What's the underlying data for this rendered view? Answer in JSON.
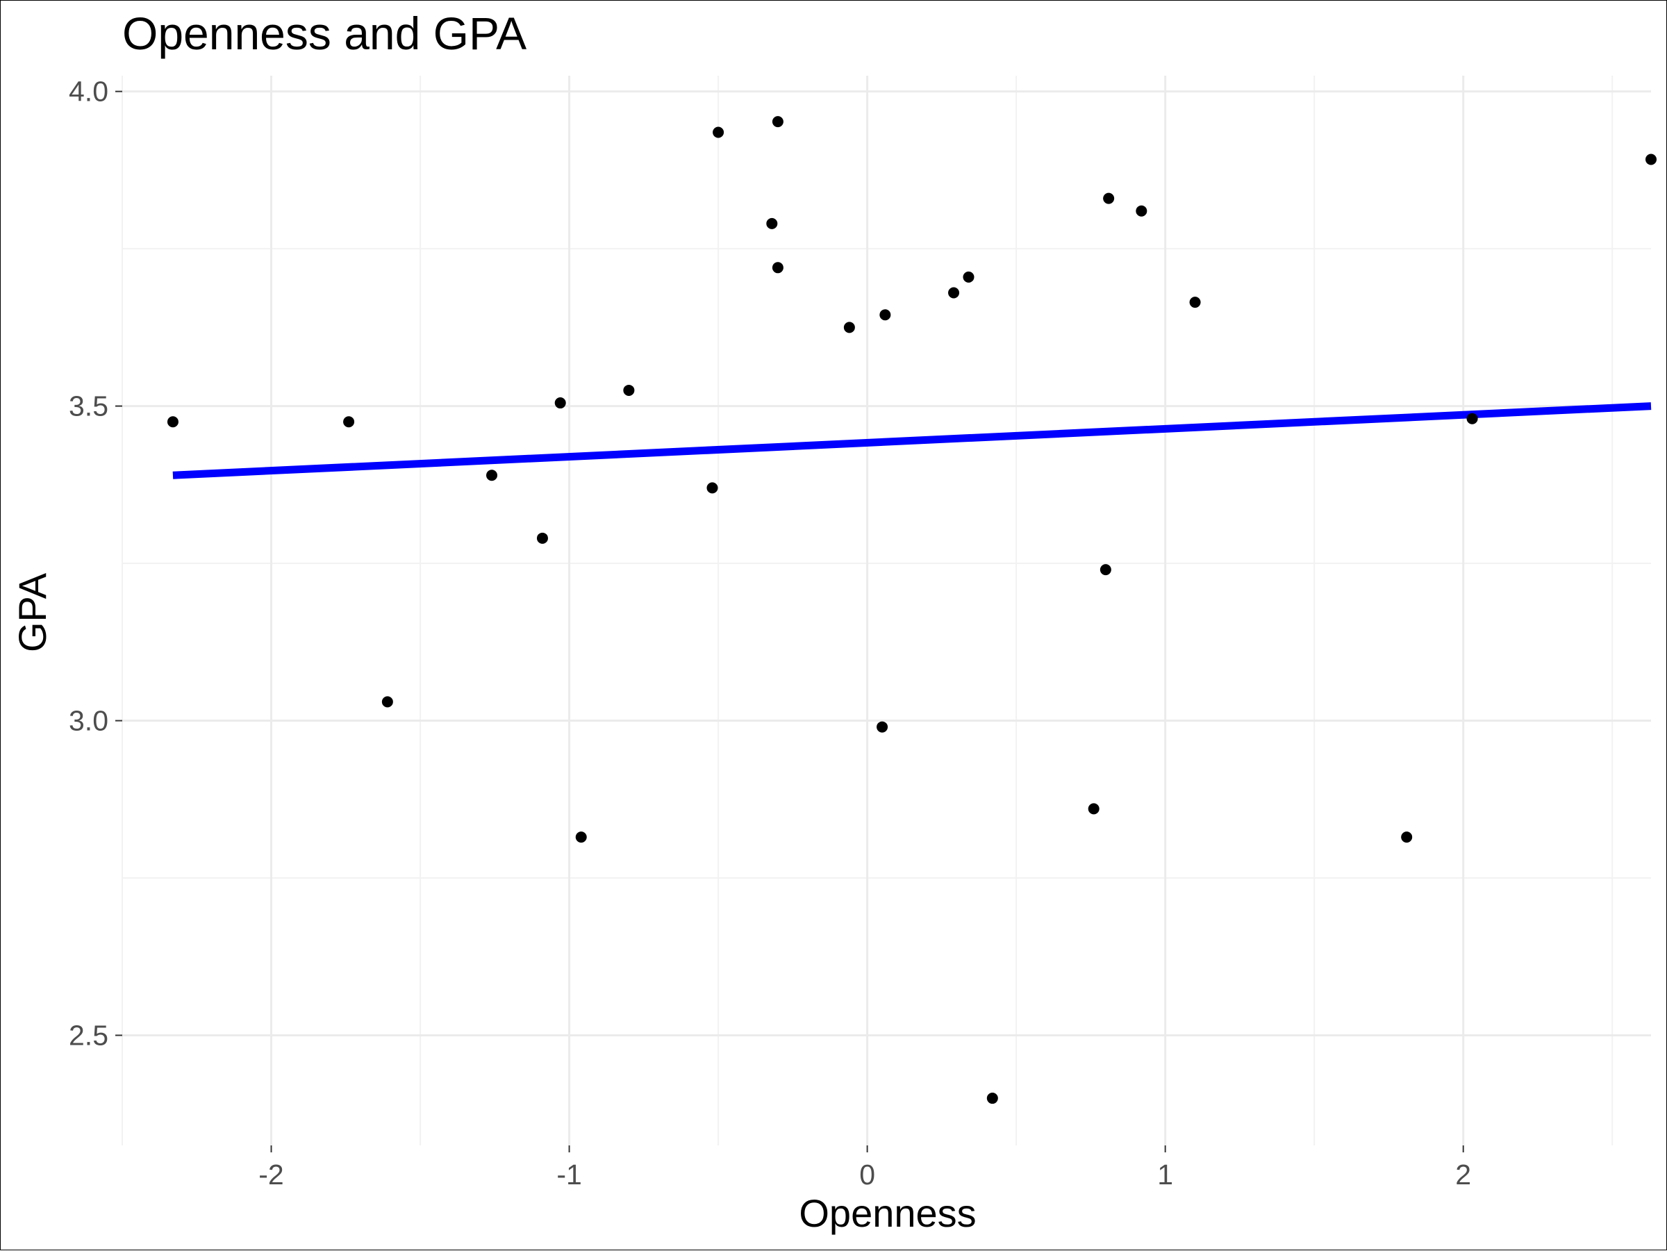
{
  "chart_data": {
    "type": "scatter",
    "title": "Openness and GPA",
    "xlabel": "Openness",
    "ylabel": "GPA",
    "xlim": [
      -2.5,
      2.63
    ],
    "ylim": [
      2.325,
      4.025
    ],
    "x_ticks": [
      -2,
      -1,
      0,
      1,
      2
    ],
    "x_tick_labels": [
      "-2",
      "-1",
      "0",
      "1",
      "2"
    ],
    "x_minor_ticks": [
      -2.5,
      -1.5,
      -0.5,
      0.5,
      1.5,
      2.5
    ],
    "y_ticks": [
      2.5,
      3.0,
      3.5,
      4.0
    ],
    "y_tick_labels": [
      "2.5",
      "3.0",
      "3.5",
      "4.0"
    ],
    "y_minor_ticks": [
      2.75,
      3.25,
      3.75
    ],
    "grid": true,
    "series": [
      {
        "x": [
          -2.33,
          -1.74,
          -1.61,
          -1.26,
          -1.09,
          -1.03,
          -0.96,
          -0.8,
          -0.52,
          -0.5,
          -0.32,
          -0.3,
          -0.3,
          -0.06,
          0.05,
          0.06,
          0.29,
          0.34,
          0.42,
          0.76,
          0.8,
          0.81,
          0.92,
          1.1,
          1.81,
          2.03,
          2.63
        ],
        "y": [
          3.475,
          3.475,
          3.03,
          3.39,
          3.29,
          3.505,
          2.815,
          3.525,
          3.37,
          3.935,
          3.79,
          3.72,
          3.952,
          3.625,
          2.99,
          3.645,
          3.68,
          3.705,
          2.4,
          2.86,
          3.24,
          3.83,
          3.81,
          3.665,
          2.815,
          3.48,
          3.892
        ]
      }
    ],
    "fit_line": {
      "x": [
        -2.33,
        2.63
      ],
      "y": [
        3.39,
        3.5
      ]
    },
    "colors": {
      "points": "#000000",
      "fit_line": "#0000ff",
      "grid_major": "#ebebeb",
      "grid_minor": "#f2f2f2",
      "tick_label": "#4d4d4d"
    }
  }
}
